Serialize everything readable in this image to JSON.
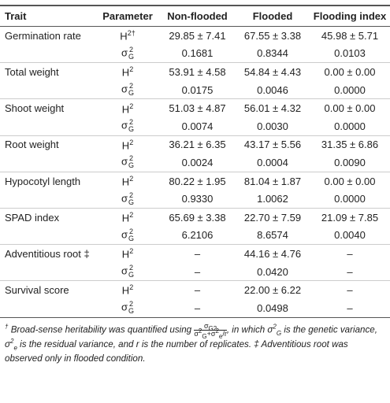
{
  "table": {
    "headers": [
      "Trait",
      "Parameter",
      "Non-flooded",
      "Flooded",
      "Flooding index"
    ],
    "groups": [
      {
        "trait": "Germination rate",
        "rows": [
          {
            "parameter": {
              "base": "H",
              "sup": "2†"
            },
            "cells": [
              "29.85 ± 7.41",
              "67.55 ± 3.38",
              "45.98 ± 5.71"
            ]
          },
          {
            "parameter": {
              "base": "σ",
              "sup": "2",
              "sub": "G"
            },
            "cells": [
              "0.1681",
              "0.8344",
              "0.0103"
            ]
          }
        ]
      },
      {
        "trait": "Total weight",
        "rows": [
          {
            "parameter": {
              "base": "H",
              "sup": "2"
            },
            "cells": [
              "53.91 ± 4.58",
              "54.84 ± 4.43",
              "0.00 ± 0.00"
            ]
          },
          {
            "parameter": {
              "base": "σ",
              "sup": "2",
              "sub": "G"
            },
            "cells": [
              "0.0175",
              "0.0046",
              "0.0000"
            ]
          }
        ]
      },
      {
        "trait": "Shoot weight",
        "rows": [
          {
            "parameter": {
              "base": "H",
              "sup": "2"
            },
            "cells": [
              "51.03 ± 4.87",
              "56.01 ± 4.32",
              "0.00 ± 0.00"
            ]
          },
          {
            "parameter": {
              "base": "σ",
              "sup": "2",
              "sub": "G"
            },
            "cells": [
              "0.0074",
              "0.0030",
              "0.0000"
            ]
          }
        ]
      },
      {
        "trait": "Root weight",
        "rows": [
          {
            "parameter": {
              "base": "H",
              "sup": "2"
            },
            "cells": [
              "36.21 ± 6.35",
              "43.17 ± 5.56",
              "31.35 ± 6.86"
            ]
          },
          {
            "parameter": {
              "base": "σ",
              "sup": "2",
              "sub": "G"
            },
            "cells": [
              "0.0024",
              "0.0004",
              "0.0090"
            ]
          }
        ]
      },
      {
        "trait": "Hypocotyl length",
        "rows": [
          {
            "parameter": {
              "base": "H",
              "sup": "2"
            },
            "cells": [
              "80.22 ± 1.95",
              "81.04 ± 1.87",
              "0.00 ± 0.00"
            ]
          },
          {
            "parameter": {
              "base": "σ",
              "sup": "2",
              "sub": "G"
            },
            "cells": [
              "0.9330",
              "1.0062",
              "0.0000"
            ]
          }
        ]
      },
      {
        "trait": "SPAD index",
        "rows": [
          {
            "parameter": {
              "base": "H",
              "sup": "2"
            },
            "cells": [
              "65.69 ± 3.38",
              "22.70 ± 7.59",
              "21.09 ± 7.85"
            ]
          },
          {
            "parameter": {
              "base": "σ",
              "sup": "2",
              "sub": "G"
            },
            "cells": [
              "6.2106",
              "8.6574",
              "0.0040"
            ]
          }
        ]
      },
      {
        "trait": "Adventitious root ‡",
        "rows": [
          {
            "parameter": {
              "base": "H",
              "sup": "2"
            },
            "cells": [
              "–",
              "44.16 ± 4.76",
              "–"
            ]
          },
          {
            "parameter": {
              "base": "σ",
              "sup": "2",
              "sub": "G"
            },
            "cells": [
              "–",
              "0.0420",
              "–"
            ]
          }
        ]
      },
      {
        "trait": "Survival score",
        "rows": [
          {
            "parameter": {
              "base": "H",
              "sup": "2"
            },
            "cells": [
              "–",
              "22.00 ± 6.22",
              "–"
            ]
          },
          {
            "parameter": {
              "base": "σ",
              "sup": "2",
              "sub": "G"
            },
            "cells": [
              "–",
              "0.0498",
              "–"
            ]
          }
        ]
      }
    ]
  },
  "footnote": [
    "†",
    "Broad-sense heritability was quantified using",
    "σ",
    "G2",
    "σ",
    "2",
    "G",
    "+",
    "σ",
    "2",
    "e",
    "r",
    ", in which",
    "σ",
    "2",
    "G",
    "is the genetic variance,",
    "σ",
    "2",
    "e",
    "is the residual variance, and",
    "r",
    "is the number of replicates. ‡ Adventitious root was observed only in flooded condition."
  ]
}
